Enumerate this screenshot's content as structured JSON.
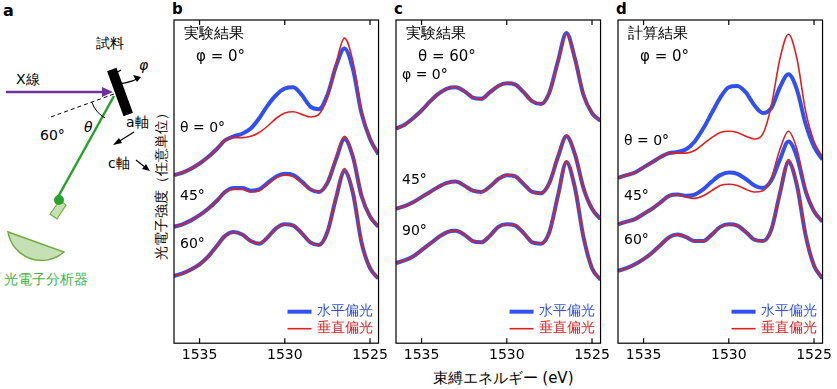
{
  "panel_a": {
    "label": "a",
    "x_ray": "X線",
    "sample": "試料",
    "angle": "60°",
    "theta": "θ",
    "phi": "φ",
    "a_axis": "a軸",
    "c_axis": "c軸",
    "analyzer": "光電子分析器"
  },
  "y_label": "光電子強度（任意単位）",
  "x_label": "束縛エネルギー (eV)",
  "chart_data": [
    {
      "type": "line",
      "panel": "b",
      "title": "実験結果",
      "subtitle": "φ = 0°",
      "x": [
        1536.5,
        1536,
        1535.5,
        1535,
        1534.5,
        1534,
        1533.5,
        1533,
        1532.5,
        1532,
        1531.5,
        1531,
        1530.5,
        1530,
        1529.5,
        1529,
        1528.5,
        1528,
        1527.5,
        1527,
        1526.5,
        1526,
        1525.5,
        1525,
        1524.5
      ],
      "xlim": [
        1536.5,
        1524.5
      ],
      "xticks": [
        1535,
        1530,
        1525
      ],
      "ylim": [
        -2,
        10.5
      ],
      "tick_labels": "x",
      "grid": false,
      "legend": "lower right",
      "curve_labels": [
        "θ = 0°",
        "45°",
        "60°"
      ],
      "series": [
        {
          "name": "水平偏光",
          "color": "#3050f0",
          "values": [
            4.5,
            4.6,
            4.75,
            4.95,
            5.2,
            5.5,
            5.85,
            6.0,
            6.1,
            6.3,
            6.7,
            7.2,
            7.6,
            7.85,
            7.9,
            7.6,
            7.15,
            7.05,
            7.6,
            8.7,
            9.4,
            8.6,
            6.9,
            5.9,
            5.3
          ]
        },
        {
          "name": "垂直偏光",
          "color": "#e02020",
          "values": [
            4.5,
            4.6,
            4.75,
            4.95,
            5.2,
            5.5,
            5.85,
            5.95,
            5.95,
            6.0,
            6.15,
            6.4,
            6.7,
            6.9,
            6.95,
            6.85,
            6.75,
            6.85,
            7.5,
            8.8,
            9.8,
            8.9,
            7.0,
            5.9,
            5.3
          ]
        },
        {
          "name": "水平偏光",
          "color": "#3050f0",
          "values": [
            2.5,
            2.6,
            2.75,
            2.95,
            3.2,
            3.5,
            3.85,
            4.0,
            4.0,
            3.9,
            3.95,
            4.2,
            4.45,
            4.55,
            4.5,
            4.25,
            3.95,
            3.85,
            4.2,
            5.1,
            5.9,
            5.2,
            3.7,
            2.9,
            2.5
          ]
        },
        {
          "name": "垂直偏光",
          "color": "#e02020",
          "values": [
            2.5,
            2.6,
            2.75,
            2.95,
            3.2,
            3.5,
            3.85,
            3.95,
            3.95,
            3.85,
            3.9,
            4.15,
            4.4,
            4.5,
            4.45,
            4.2,
            3.95,
            3.85,
            4.25,
            5.2,
            6.0,
            5.25,
            3.7,
            2.9,
            2.5
          ]
        },
        {
          "name": "水平偏光",
          "color": "#3050f0",
          "values": [
            0.6,
            0.7,
            0.85,
            1.05,
            1.35,
            1.75,
            2.15,
            2.3,
            2.2,
            1.95,
            1.85,
            2.1,
            2.45,
            2.6,
            2.55,
            2.25,
            1.9,
            1.8,
            2.3,
            3.6,
            4.65,
            3.8,
            1.9,
            0.9,
            0.5
          ]
        },
        {
          "name": "垂直偏光",
          "color": "#e02020",
          "values": [
            0.6,
            0.7,
            0.85,
            1.05,
            1.35,
            1.75,
            2.15,
            2.3,
            2.2,
            1.95,
            1.85,
            2.1,
            2.45,
            2.6,
            2.55,
            2.25,
            1.9,
            1.8,
            2.3,
            3.65,
            4.75,
            3.85,
            1.9,
            0.9,
            0.5
          ]
        }
      ]
    },
    {
      "type": "line",
      "panel": "c",
      "title": "実験結果",
      "subtitle": "θ = 60°",
      "x": [
        1536.5,
        1536,
        1535.5,
        1535,
        1534.5,
        1534,
        1533.5,
        1533,
        1532.5,
        1532,
        1531.5,
        1531,
        1530.5,
        1530,
        1529.5,
        1529,
        1528.5,
        1528,
        1527.5,
        1527,
        1526.5,
        1526,
        1525.5,
        1525,
        1524.5
      ],
      "xlim": [
        1536.5,
        1524.5
      ],
      "xticks": [
        1535,
        1530,
        1525
      ],
      "ylim": [
        -2,
        10.5
      ],
      "tick_labels": "x",
      "grid": false,
      "legend": "lower right",
      "curve_labels": [
        "φ = 0°",
        "45°",
        "90°"
      ],
      "series": [
        {
          "name": "水平偏光",
          "color": "#3050f0",
          "values": [
            6.3,
            6.45,
            6.7,
            7.0,
            7.35,
            7.65,
            7.85,
            7.9,
            7.75,
            7.5,
            7.45,
            7.7,
            7.95,
            8.05,
            8.0,
            7.7,
            7.35,
            7.25,
            7.7,
            8.9,
            10.0,
            9.0,
            7.6,
            6.9,
            6.6
          ]
        },
        {
          "name": "垂直偏光",
          "color": "#e02020",
          "values": [
            6.3,
            6.45,
            6.7,
            7.0,
            7.35,
            7.65,
            7.85,
            7.9,
            7.75,
            7.5,
            7.45,
            7.7,
            7.95,
            8.05,
            8.0,
            7.7,
            7.35,
            7.25,
            7.7,
            8.85,
            9.95,
            8.95,
            7.6,
            6.9,
            6.6
          ]
        },
        {
          "name": "水平偏光",
          "color": "#3050f0",
          "values": [
            3.2,
            3.3,
            3.45,
            3.65,
            3.85,
            4.05,
            4.2,
            4.25,
            4.1,
            3.9,
            3.85,
            4.05,
            4.35,
            4.5,
            4.45,
            4.15,
            3.85,
            3.8,
            4.2,
            5.2,
            6.0,
            5.3,
            4.0,
            3.2,
            2.8
          ]
        },
        {
          "name": "垂直偏光",
          "color": "#e02020",
          "values": [
            3.2,
            3.3,
            3.45,
            3.65,
            3.85,
            4.05,
            4.2,
            4.25,
            4.1,
            3.9,
            3.85,
            4.05,
            4.35,
            4.5,
            4.45,
            4.15,
            3.85,
            3.8,
            4.2,
            5.25,
            6.05,
            5.3,
            4.0,
            3.2,
            2.8
          ]
        },
        {
          "name": "水平偏光",
          "color": "#3050f0",
          "values": [
            1.1,
            1.2,
            1.35,
            1.6,
            1.85,
            2.1,
            2.3,
            2.35,
            2.2,
            1.95,
            1.9,
            2.15,
            2.5,
            2.6,
            2.55,
            2.25,
            1.9,
            1.85,
            2.3,
            3.7,
            5.0,
            4.0,
            2.1,
            0.9,
            0.45
          ]
        },
        {
          "name": "垂直偏光",
          "color": "#e02020",
          "values": [
            1.1,
            1.2,
            1.35,
            1.6,
            1.85,
            2.1,
            2.3,
            2.35,
            2.2,
            1.95,
            1.9,
            2.15,
            2.5,
            2.6,
            2.55,
            2.25,
            1.9,
            1.85,
            2.3,
            3.7,
            5.05,
            4.0,
            2.1,
            0.9,
            0.45
          ]
        }
      ]
    },
    {
      "type": "line",
      "panel": "d",
      "title": "計算結果",
      "subtitle": "φ = 0°",
      "x": [
        1536.5,
        1536,
        1535.5,
        1535,
        1534.5,
        1534,
        1533.5,
        1533,
        1532.5,
        1532,
        1531.5,
        1531,
        1530.5,
        1530,
        1529.5,
        1529,
        1528.5,
        1528,
        1527.5,
        1527,
        1526.5,
        1526,
        1525.5,
        1525,
        1524.5
      ],
      "xlim": [
        1536.5,
        1524.5
      ],
      "xticks": [
        1535,
        1530,
        1525
      ],
      "ylim": [
        -2,
        10.5
      ],
      "tick_labels": "x",
      "grid": false,
      "legend": "lower right",
      "curve_labels": [
        "θ = 0°",
        "45°",
        "60°"
      ],
      "series": [
        {
          "name": "水平偏光",
          "color": "#3050f0",
          "values": [
            4.4,
            4.5,
            4.6,
            4.8,
            5.0,
            5.2,
            5.35,
            5.4,
            5.5,
            5.8,
            6.3,
            6.9,
            7.5,
            7.9,
            7.95,
            7.7,
            7.2,
            6.9,
            7.1,
            7.9,
            8.4,
            7.8,
            6.5,
            5.6,
            5.1
          ]
        },
        {
          "name": "垂直偏光",
          "color": "#e02020",
          "values": [
            4.4,
            4.5,
            4.6,
            4.8,
            5.0,
            5.2,
            5.35,
            5.35,
            5.35,
            5.45,
            5.7,
            5.95,
            6.15,
            6.2,
            6.15,
            6.0,
            5.9,
            6.1,
            7.2,
            9.0,
            9.95,
            9.0,
            7.0,
            5.8,
            5.2
          ]
        },
        {
          "name": "水平偏光",
          "color": "#3050f0",
          "values": [
            2.6,
            2.7,
            2.8,
            3.0,
            3.2,
            3.45,
            3.7,
            3.75,
            3.7,
            3.75,
            3.95,
            4.25,
            4.5,
            4.6,
            4.55,
            4.35,
            4.1,
            4.0,
            4.3,
            5.1,
            5.8,
            5.2,
            3.9,
            3.1,
            2.7
          ]
        },
        {
          "name": "垂直偏光",
          "color": "#e02020",
          "values": [
            2.6,
            2.7,
            2.8,
            3.0,
            3.2,
            3.45,
            3.7,
            3.75,
            3.65,
            3.6,
            3.7,
            3.9,
            4.1,
            4.15,
            4.1,
            3.95,
            3.85,
            3.9,
            4.4,
            5.5,
            6.2,
            5.5,
            4.0,
            3.1,
            2.7
          ]
        },
        {
          "name": "水平偏光",
          "color": "#3050f0",
          "values": [
            0.8,
            0.9,
            1.05,
            1.25,
            1.5,
            1.8,
            2.1,
            2.2,
            2.1,
            1.95,
            1.95,
            2.2,
            2.5,
            2.6,
            2.55,
            2.3,
            2.0,
            1.95,
            2.4,
            3.8,
            5.0,
            4.1,
            2.2,
            1.0,
            0.5
          ]
        },
        {
          "name": "垂直偏光",
          "color": "#e02020",
          "values": [
            0.8,
            0.9,
            1.05,
            1.25,
            1.5,
            1.8,
            2.1,
            2.2,
            2.1,
            1.95,
            1.95,
            2.2,
            2.5,
            2.6,
            2.55,
            2.3,
            2.0,
            1.95,
            2.4,
            3.85,
            5.1,
            4.15,
            2.2,
            1.0,
            0.5
          ]
        }
      ]
    }
  ]
}
